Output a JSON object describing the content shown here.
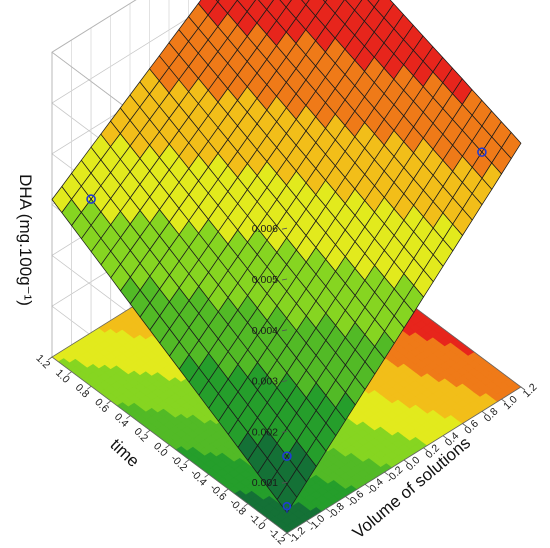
{
  "chart_data": {
    "type": "surface3d",
    "title": "",
    "zlabel": "DHA (mg.100g⁻¹)",
    "xlabel": "Volume of solutions",
    "ylabel": "time",
    "xlim": [
      -1.2,
      1.2
    ],
    "ylim": [
      -1.2,
      1.2
    ],
    "zlim": [
      0,
      0.006
    ],
    "x_ticks": [
      "-1.2",
      "-1.0",
      "-0.8",
      "-0.6",
      "-0.4",
      "-0.2",
      "0.0",
      "0.2",
      "0.4",
      "0.6",
      "0.8",
      "1.0",
      "1.2"
    ],
    "y_ticks": [
      "1.2",
      "1.0",
      "0.8",
      "0.6",
      "0.4",
      "0.2",
      "0.0",
      "-0.2",
      "-0.4",
      "-0.6",
      "-0.8",
      "-1.0",
      "-1.2"
    ],
    "z_ticks": [
      "0.001",
      "0.002",
      "0.003",
      "0.004",
      "0.005",
      "0.006"
    ],
    "z_tick_values": [
      0.001,
      0.002,
      0.003,
      0.004,
      0.005,
      0.006
    ],
    "grid": true,
    "surface_corners": [
      {
        "x": -1.2,
        "y": -1.2,
        "z": 0.0004
      },
      {
        "x": 1.2,
        "y": -1.2,
        "z": 0.0048
      },
      {
        "x": 1.2,
        "y": 1.2,
        "z": 0.0064
      },
      {
        "x": -1.2,
        "y": 1.2,
        "z": 0.0031
      }
    ],
    "observed_points": [
      {
        "x": -1.0,
        "y": -1.0,
        "z": 0.0006
      },
      {
        "x": 1.0,
        "y": -1.0,
        "z": 0.0045
      },
      {
        "x": -1.0,
        "y": 1.0,
        "z": 0.0034
      }
    ],
    "colors": {
      "low": "#0b5a3c",
      "mid_low": "#27a32a",
      "mid": "#7fd321",
      "yellow": "#f2ee1c",
      "orange": "#f29a16",
      "high": "#e6201c",
      "top": "#a40e12",
      "point": "#1f3bd6"
    }
  }
}
